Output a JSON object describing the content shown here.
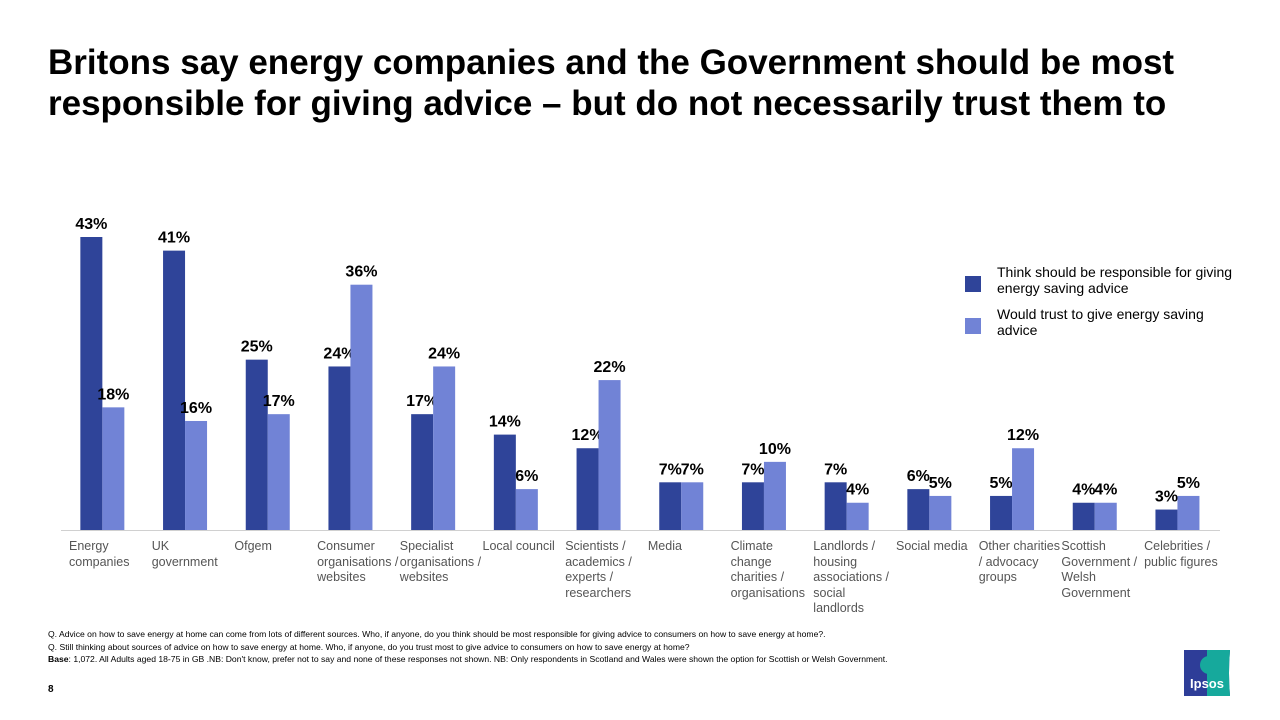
{
  "title": "Britons say energy companies and the Government should be most responsible for giving advice – but do not necessarily trust them to",
  "chart_data": {
    "type": "bar",
    "title": "",
    "xlabel": "",
    "ylabel": "",
    "ylim": [
      0,
      45
    ],
    "grid": false,
    "legend_placement": "right",
    "categories": [
      "Energy companies",
      "UK government",
      "Ofgem",
      "Consumer organisations / websites",
      "Specialist organisations / websites",
      "Local council",
      "Scientists / academics / experts / researchers",
      "Media",
      "Climate change charities / organisations",
      "Landlords / housing associations / social landlords",
      "Social media",
      "Other charities / advocacy groups",
      "Scottish Government / Welsh Government",
      "Celebrities / public figures"
    ],
    "series": [
      {
        "name": "Think should be responsible for giving energy saving advice",
        "color": "#2F4499",
        "values": [
          43,
          41,
          25,
          24,
          17,
          14,
          12,
          7,
          7,
          7,
          6,
          5,
          4,
          3
        ]
      },
      {
        "name": "Would trust to give energy saving advice",
        "color": "#7183D6",
        "values": [
          18,
          16,
          17,
          36,
          24,
          6,
          22,
          7,
          10,
          4,
          5,
          12,
          4,
          5
        ]
      }
    ],
    "value_suffix": "%"
  },
  "notes": {
    "q1": "Q. Advice on how to save energy at home can come from lots of different sources. Who, if anyone, do you think should be most responsible for giving advice to consumers on how to save energy at home?.",
    "q2": "Q. Still thinking about sources of advice on how to save energy at home. Who, if anyone, do you trust most to give advice to consumers on how to save energy at home?",
    "base_label": "Base",
    "base_text": ": 1,072. All Adults aged 18-75 in GB .NB: Don't know, prefer not to say and none of these responses not shown. NB: Only respondents in Scotland and Wales were shown the option for Scottish or Welsh Government."
  },
  "page_number": "8",
  "logo": {
    "text": "Ipsos",
    "colors": [
      "#2E3D98",
      "#16A99C"
    ]
  }
}
